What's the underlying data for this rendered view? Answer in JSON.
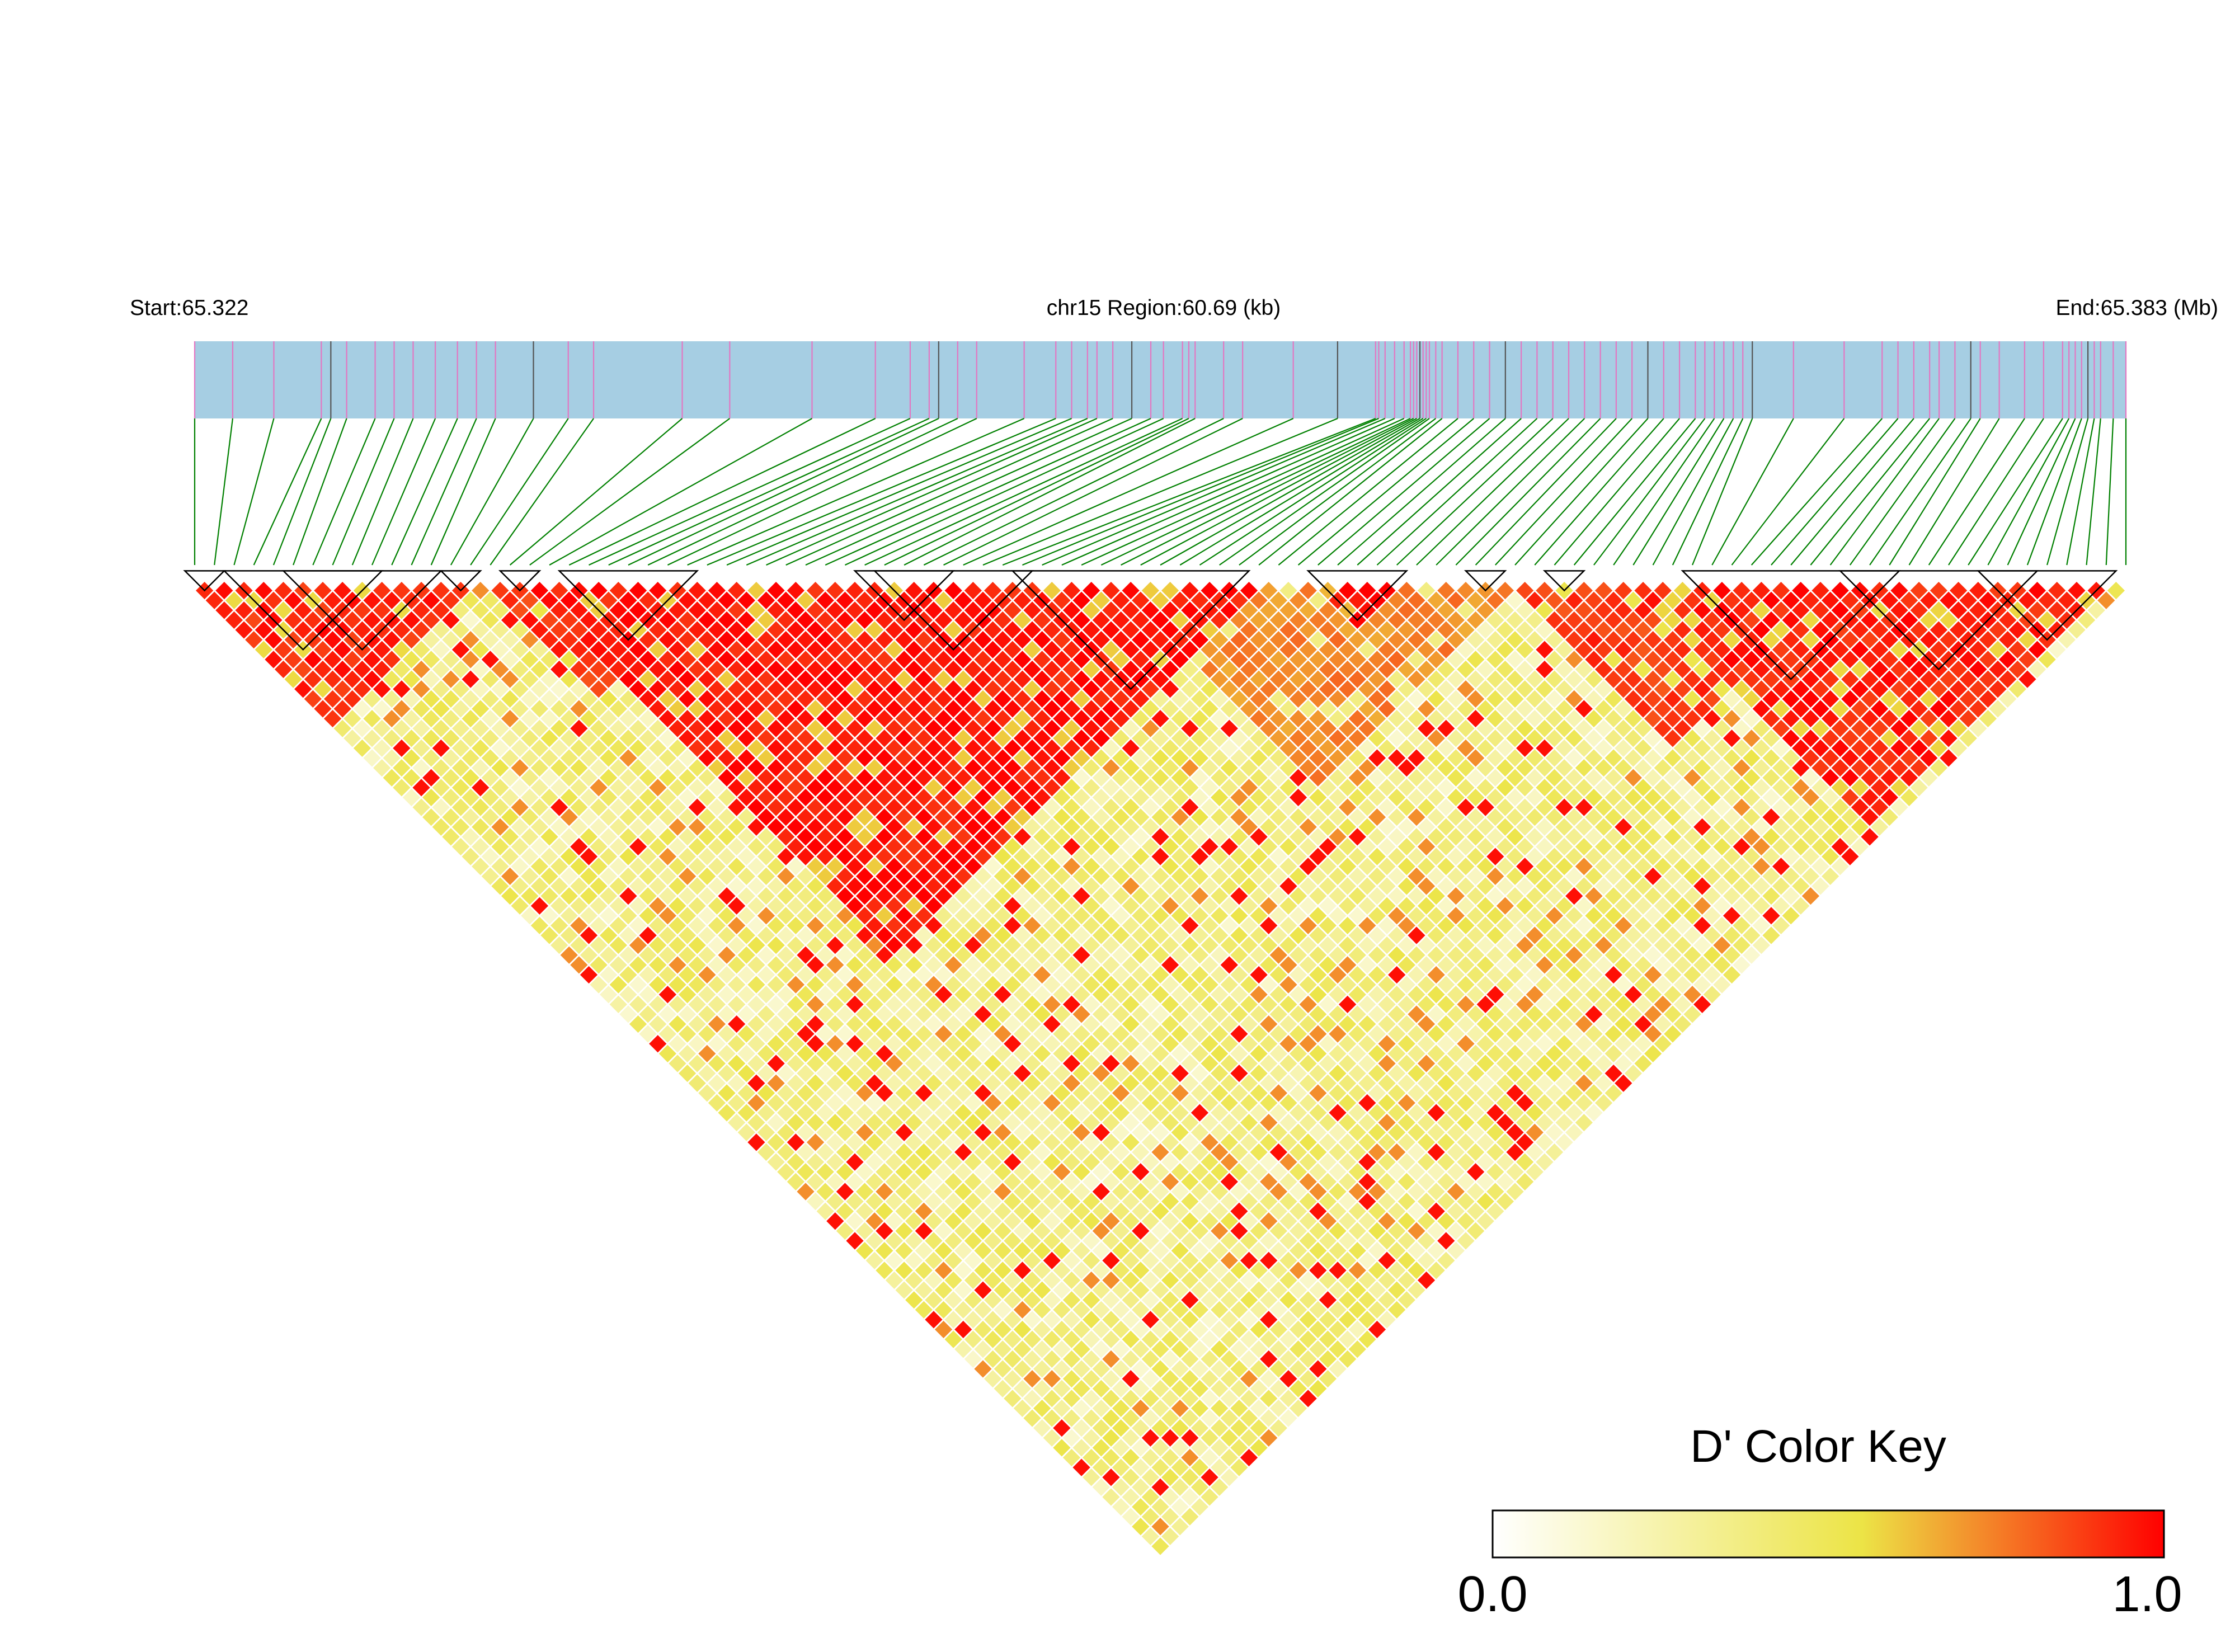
{
  "header": {
    "start_label": "Start:65.322",
    "region_label": "chr15 Region:60.69 (kb)",
    "end_label": "End:65.383 (Mb)"
  },
  "chart_data": {
    "type": "heatmap",
    "title": "",
    "chromosome": "chr15",
    "region_start_mb": 65.322,
    "region_end_mb": 65.383,
    "region_length_kb": 60.69,
    "snp_count": 99,
    "snp_positions_mb": [
      65.322,
      65.3232,
      65.3245,
      65.326,
      65.3263,
      65.3268,
      65.3277,
      65.3283,
      65.3289,
      65.3296,
      65.3303,
      65.3309,
      65.3315,
      65.3327,
      65.3338,
      65.3346,
      65.3374,
      65.3389,
      65.3415,
      65.3435,
      65.3446,
      65.3452,
      65.3455,
      65.3461,
      65.3467,
      65.3482,
      65.3492,
      65.3497,
      65.3502,
      65.3505,
      65.351,
      65.3516,
      65.3522,
      65.3526,
      65.3532,
      65.3534,
      65.3536,
      65.3545,
      65.3551,
      65.3567,
      65.3581,
      65.3593,
      65.3594,
      65.3596,
      65.3599,
      65.3602,
      65.3604,
      65.3605,
      65.3606,
      65.3607,
      65.3608,
      65.3609,
      65.361,
      65.3612,
      65.3614,
      65.3619,
      65.3624,
      65.3629,
      65.3634,
      65.3639,
      65.3644,
      65.3649,
      65.3654,
      65.3659,
      65.3664,
      65.3669,
      65.3674,
      65.3679,
      65.3684,
      65.3689,
      65.3694,
      65.3697,
      65.37,
      65.3703,
      65.3706,
      65.3709,
      65.3712,
      65.3725,
      65.3741,
      65.3753,
      65.3758,
      65.3763,
      65.3768,
      65.3771,
      65.3776,
      65.3781,
      65.3784,
      65.379,
      65.3798,
      65.3804,
      65.381,
      65.3812,
      65.3814,
      65.3816,
      65.3818,
      65.382,
      65.3822,
      65.3826,
      65.383
    ],
    "haplotype_blocks": [
      {
        "first_snp": 1,
        "last_snp": 2
      },
      {
        "first_snp": 3,
        "last_snp": 10
      },
      {
        "first_snp": 6,
        "last_snp": 13
      },
      {
        "first_snp": 14,
        "last_snp": 15
      },
      {
        "first_snp": 17,
        "last_snp": 18
      },
      {
        "first_snp": 20,
        "last_snp": 26
      },
      {
        "first_snp": 35,
        "last_snp": 39
      },
      {
        "first_snp": 36,
        "last_snp": 43
      },
      {
        "first_snp": 43,
        "last_snp": 54
      },
      {
        "first_snp": 58,
        "last_snp": 62
      },
      {
        "first_snp": 66,
        "last_snp": 67
      },
      {
        "first_snp": 70,
        "last_snp": 71
      },
      {
        "first_snp": 77,
        "last_snp": 87
      },
      {
        "first_snp": 85,
        "last_snp": 94
      },
      {
        "first_snp": 92,
        "last_snp": 98
      }
    ],
    "strong_ld_clusters": [
      {
        "first_snp": 1,
        "last_snp": 15,
        "d_prime": 0.92
      },
      {
        "first_snp": 16,
        "last_snp": 27,
        "d_prime": 0.9
      },
      {
        "first_snp": 18,
        "last_snp": 55,
        "d_prime": 0.95
      },
      {
        "first_snp": 22,
        "last_snp": 40,
        "d_prime": 0.94
      },
      {
        "first_snp": 43,
        "last_snp": 54,
        "d_prime": 0.95
      },
      {
        "first_snp": 48,
        "last_snp": 68,
        "d_prime": 0.72
      },
      {
        "first_snp": 58,
        "last_snp": 62,
        "d_prime": 0.99
      },
      {
        "first_snp": 68,
        "last_snp": 84,
        "d_prime": 0.88
      },
      {
        "first_snp": 74,
        "last_snp": 98,
        "d_prime": 0.93
      },
      {
        "first_snp": 86,
        "last_snp": 97,
        "d_prime": 0.78
      }
    ],
    "color_key": {
      "title": "D' Color Key",
      "min_label": "0.0",
      "max_label": "1.0",
      "range": [
        0,
        1
      ],
      "colors": [
        "#ffffff",
        "#ece446",
        "#ff0000"
      ]
    },
    "colors": {
      "snp_track": "#a6cee3",
      "snp_marker": "#e377c2",
      "snp_marker_alt": "#555555",
      "connector": "#008000",
      "block_outline": "#000000"
    }
  }
}
